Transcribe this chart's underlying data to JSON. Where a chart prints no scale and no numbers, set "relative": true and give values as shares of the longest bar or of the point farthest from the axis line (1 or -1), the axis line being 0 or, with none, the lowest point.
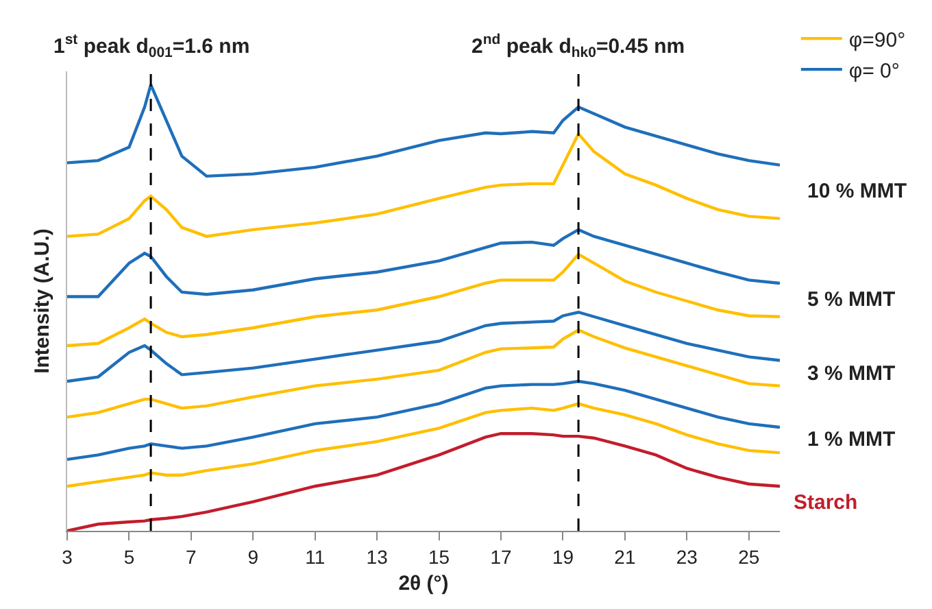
{
  "chart_data": {
    "type": "line",
    "relative": true,
    "xlabel": "2θ (°)",
    "ylabel": "Intensity (A.U.)",
    "x": [
      3,
      4,
      5,
      5.5,
      5.7,
      6.2,
      6.7,
      7.5,
      9,
      11,
      13,
      15,
      16.5,
      17,
      18,
      18.7,
      19,
      19.5,
      20,
      21,
      22,
      23,
      24,
      25,
      26
    ],
    "xlim": [
      3,
      26
    ],
    "xticks": [
      3,
      5,
      7,
      9,
      11,
      13,
      15,
      17,
      19,
      21,
      23,
      25
    ],
    "grid": false,
    "legend": "top right",
    "marker": "none",
    "line_style": "solid",
    "series": [
      {
        "name": "Starch",
        "color": "#c21d2b",
        "values": [
          0,
          0.015,
          0.02,
          0.022,
          0.025,
          0.028,
          0.032,
          0.042,
          0.065,
          0.1,
          0.125,
          0.17,
          0.21,
          0.218,
          0.218,
          0.215,
          0.212,
          0.212,
          0.208,
          0.19,
          0.17,
          0.14,
          0.12,
          0.105,
          0.1
        ]
      },
      {
        "name": "φ=90°",
        "color": "#ffbf00",
        "values": [
          0.1,
          0.11,
          0.12,
          0.125,
          0.13,
          0.125,
          0.125,
          0.135,
          0.15,
          0.18,
          0.2,
          0.23,
          0.265,
          0.27,
          0.275,
          0.27,
          0.275,
          0.285,
          0.275,
          0.26,
          0.24,
          0.215,
          0.195,
          0.18,
          0.175
        ]
      },
      {
        "name": "φ= 0°",
        "color": "#1f6fba",
        "values": [
          0.16,
          0.17,
          0.185,
          0.19,
          0.195,
          0.19,
          0.185,
          0.19,
          0.21,
          0.24,
          0.255,
          0.285,
          0.32,
          0.325,
          0.328,
          0.328,
          0.33,
          0.335,
          0.33,
          0.315,
          0.295,
          0.275,
          0.255,
          0.24,
          0.232
        ]
      },
      {
        "color": "#ffbf00",
        "values": [
          0.255,
          0.265,
          0.285,
          0.295,
          0.295,
          0.285,
          0.275,
          0.28,
          0.3,
          0.325,
          0.34,
          0.36,
          0.4,
          0.408,
          0.41,
          0.412,
          0.43,
          0.45,
          0.435,
          0.41,
          0.39,
          0.37,
          0.35,
          0.33,
          0.325
        ]
      },
      {
        "color": "#1f6fba",
        "values": [
          0.335,
          0.345,
          0.4,
          0.415,
          0.405,
          0.375,
          0.35,
          0.355,
          0.365,
          0.385,
          0.405,
          0.425,
          0.46,
          0.465,
          0.468,
          0.47,
          0.482,
          0.49,
          0.48,
          0.46,
          0.44,
          0.42,
          0.405,
          0.39,
          0.382
        ]
      },
      {
        "color": "#ffbf00",
        "values": [
          0.415,
          0.42,
          0.455,
          0.475,
          0.465,
          0.445,
          0.435,
          0.44,
          0.455,
          0.48,
          0.495,
          0.525,
          0.555,
          0.562,
          0.562,
          0.562,
          0.58,
          0.62,
          0.6,
          0.56,
          0.535,
          0.515,
          0.495,
          0.482,
          0.48
        ]
      },
      {
        "color": "#1f6fba",
        "values": [
          0.525,
          0.525,
          0.6,
          0.622,
          0.615,
          0.57,
          0.535,
          0.53,
          0.54,
          0.565,
          0.58,
          0.605,
          0.635,
          0.645,
          0.647,
          0.64,
          0.655,
          0.675,
          0.66,
          0.64,
          0.62,
          0.6,
          0.58,
          0.562,
          0.555
        ]
      },
      {
        "color": "#ffbf00",
        "values": [
          0.66,
          0.665,
          0.7,
          0.74,
          0.75,
          0.72,
          0.68,
          0.66,
          0.675,
          0.69,
          0.71,
          0.745,
          0.77,
          0.775,
          0.778,
          0.778,
          0.82,
          0.89,
          0.85,
          0.8,
          0.775,
          0.745,
          0.72,
          0.705,
          0.7
        ]
      },
      {
        "color": "#1f6fba",
        "values": [
          0.825,
          0.83,
          0.86,
          0.95,
          1,
          0.92,
          0.84,
          0.795,
          0.8,
          0.815,
          0.84,
          0.875,
          0.892,
          0.89,
          0.895,
          0.892,
          0.92,
          0.95,
          0.935,
          0.905,
          0.885,
          0.865,
          0.845,
          0.83,
          0.82
        ]
      }
    ],
    "ref_lines": [
      {
        "axis": "x",
        "value": 5.7,
        "color": "#000000",
        "line_style": "dashed"
      },
      {
        "axis": "x",
        "value": 19.5,
        "color": "#000000",
        "line_style": "dashed"
      }
    ],
    "annotations": [
      "1$^{st}$ peak d$_{001}$=1.6 nm",
      "2$^{nd}$ peak d$_{hk0}$=0.45 nm",
      "10 % MMT",
      "5 % MMT",
      "3 % MMT",
      "1 % MMT"
    ]
  }
}
